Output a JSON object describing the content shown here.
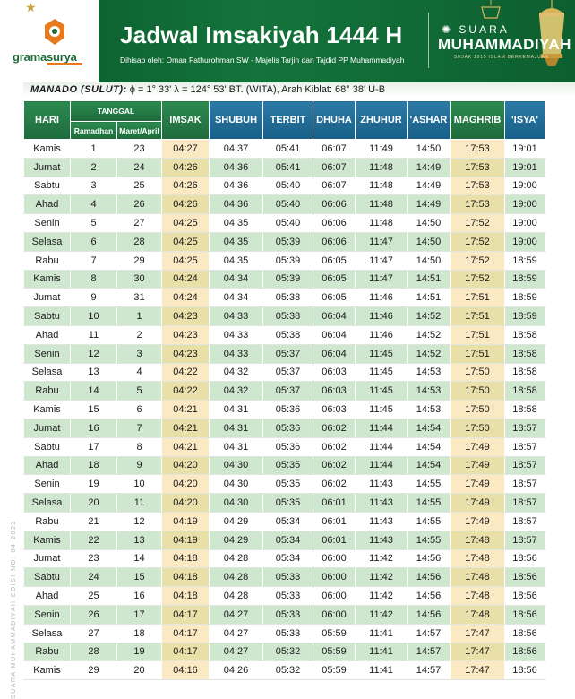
{
  "header": {
    "publisher": "gramasurya",
    "title": "Jadwal Imsakiyah 1444 H",
    "subtitle": "Dihisab oleh: Oman Fathurohman SW - Majelis Tarjih dan Tajdid PP Muhammadiyah",
    "brand_line1": "SUARA",
    "brand_line2": "MUHAMMADIYAH",
    "brand_line3": "SEJAK 1915 ISLAM BERKEMAJUAN"
  },
  "location": {
    "city": "MANADO (SULUT):",
    "coords": "ϕ = 1° 33'  λ = 124° 53'  BT. (WITA), Arah Kiblat: 68° 38' U-B"
  },
  "side_note": "SUARA MUHAMMADIYAH EDISI NO: 04-2023",
  "colors": {
    "header_green": "#13733a",
    "header_blue": "#175f88",
    "row_alt_green": "#cfe6cf",
    "highlight_cream": "#fbe9c4",
    "accent_orange": "#e87a1b",
    "gold": "#c9a23a"
  },
  "table": {
    "headers": {
      "hari": "HARI",
      "tanggal": "TANGGAL",
      "ramadhan": "Ramadhan",
      "maret_april": "Maret/April",
      "imsak": "IMSAK",
      "shubuh": "SHUBUH",
      "terbit": "TERBIT",
      "dhuha": "DHUHA",
      "zhuhur": "ZHUHUR",
      "ashar": "'ASHAR",
      "maghrib": "MAGHRIB",
      "isya": "'ISYA'"
    },
    "rows": [
      [
        "Kamis",
        "1",
        "23",
        "04:27",
        "04:37",
        "05:41",
        "06:07",
        "11:49",
        "14:50",
        "17:53",
        "19:01"
      ],
      [
        "Jumat",
        "2",
        "24",
        "04:26",
        "04:36",
        "05:41",
        "06:07",
        "11:48",
        "14:49",
        "17:53",
        "19:01"
      ],
      [
        "Sabtu",
        "3",
        "25",
        "04:26",
        "04:36",
        "05:40",
        "06:07",
        "11:48",
        "14:49",
        "17:53",
        "19:00"
      ],
      [
        "Ahad",
        "4",
        "26",
        "04:26",
        "04:36",
        "05:40",
        "06:06",
        "11:48",
        "14:49",
        "17:53",
        "19:00"
      ],
      [
        "Senin",
        "5",
        "27",
        "04:25",
        "04:35",
        "05:40",
        "06:06",
        "11:48",
        "14:50",
        "17:52",
        "19:00"
      ],
      [
        "Selasa",
        "6",
        "28",
        "04:25",
        "04:35",
        "05:39",
        "06:06",
        "11:47",
        "14:50",
        "17:52",
        "19:00"
      ],
      [
        "Rabu",
        "7",
        "29",
        "04:25",
        "04:35",
        "05:39",
        "06:05",
        "11:47",
        "14:50",
        "17:52",
        "18:59"
      ],
      [
        "Kamis",
        "8",
        "30",
        "04:24",
        "04:34",
        "05:39",
        "06:05",
        "11:47",
        "14:51",
        "17:52",
        "18:59"
      ],
      [
        "Jumat",
        "9",
        "31",
        "04:24",
        "04:34",
        "05:38",
        "06:05",
        "11:46",
        "14:51",
        "17:51",
        "18:59"
      ],
      [
        "Sabtu",
        "10",
        "1",
        "04:23",
        "04:33",
        "05:38",
        "06:04",
        "11:46",
        "14:52",
        "17:51",
        "18:59"
      ],
      [
        "Ahad",
        "11",
        "2",
        "04:23",
        "04:33",
        "05:38",
        "06:04",
        "11:46",
        "14:52",
        "17:51",
        "18:58"
      ],
      [
        "Senin",
        "12",
        "3",
        "04:23",
        "04:33",
        "05:37",
        "06:04",
        "11:45",
        "14:52",
        "17:51",
        "18:58"
      ],
      [
        "Selasa",
        "13",
        "4",
        "04:22",
        "04:32",
        "05:37",
        "06:03",
        "11:45",
        "14:53",
        "17:50",
        "18:58"
      ],
      [
        "Rabu",
        "14",
        "5",
        "04:22",
        "04:32",
        "05:37",
        "06:03",
        "11:45",
        "14:53",
        "17:50",
        "18:58"
      ],
      [
        "Kamis",
        "15",
        "6",
        "04:21",
        "04:31",
        "05:36",
        "06:03",
        "11:45",
        "14:53",
        "17:50",
        "18:58"
      ],
      [
        "Jumat",
        "16",
        "7",
        "04:21",
        "04:31",
        "05:36",
        "06:02",
        "11:44",
        "14:54",
        "17:50",
        "18:57"
      ],
      [
        "Sabtu",
        "17",
        "8",
        "04:21",
        "04:31",
        "05:36",
        "06:02",
        "11:44",
        "14:54",
        "17:49",
        "18:57"
      ],
      [
        "Ahad",
        "18",
        "9",
        "04:20",
        "04:30",
        "05:35",
        "06:02",
        "11:44",
        "14:54",
        "17:49",
        "18:57"
      ],
      [
        "Senin",
        "19",
        "10",
        "04:20",
        "04:30",
        "05:35",
        "06:02",
        "11:43",
        "14:55",
        "17:49",
        "18:57"
      ],
      [
        "Selasa",
        "20",
        "11",
        "04:20",
        "04:30",
        "05:35",
        "06:01",
        "11:43",
        "14:55",
        "17:49",
        "18:57"
      ],
      [
        "Rabu",
        "21",
        "12",
        "04:19",
        "04:29",
        "05:34",
        "06:01",
        "11:43",
        "14:55",
        "17:49",
        "18:57"
      ],
      [
        "Kamis",
        "22",
        "13",
        "04:19",
        "04:29",
        "05:34",
        "06:01",
        "11:43",
        "14:55",
        "17:48",
        "18:57"
      ],
      [
        "Jumat",
        "23",
        "14",
        "04:18",
        "04:28",
        "05:34",
        "06:00",
        "11:42",
        "14:56",
        "17:48",
        "18:56"
      ],
      [
        "Sabtu",
        "24",
        "15",
        "04:18",
        "04:28",
        "05:33",
        "06:00",
        "11:42",
        "14:56",
        "17:48",
        "18:56"
      ],
      [
        "Ahad",
        "25",
        "16",
        "04:18",
        "04:28",
        "05:33",
        "06:00",
        "11:42",
        "14:56",
        "17:48",
        "18:56"
      ],
      [
        "Senin",
        "26",
        "17",
        "04:17",
        "04:27",
        "05:33",
        "06:00",
        "11:42",
        "14:56",
        "17:48",
        "18:56"
      ],
      [
        "Selasa",
        "27",
        "18",
        "04:17",
        "04:27",
        "05:33",
        "05:59",
        "11:41",
        "14:57",
        "17:47",
        "18:56"
      ],
      [
        "Rabu",
        "28",
        "19",
        "04:17",
        "04:27",
        "05:32",
        "05:59",
        "11:41",
        "14:57",
        "17:47",
        "18:56"
      ],
      [
        "Kamis",
        "29",
        "20",
        "04:16",
        "04:26",
        "05:32",
        "05:59",
        "11:41",
        "14:57",
        "17:47",
        "18:56"
      ]
    ]
  }
}
